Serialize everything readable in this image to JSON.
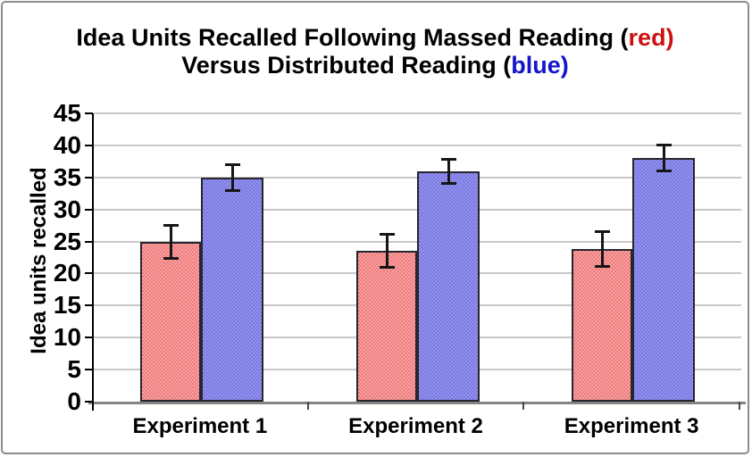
{
  "title": {
    "line1_text": "Idea Units Recalled Following Massed Reading (",
    "line1_colored": "red)",
    "line2_text": "Versus Distributed Reading (",
    "line2_colored": "blue)"
  },
  "axes": {
    "y_label": "Idea units recalled",
    "y_ticks": [
      "0",
      "5",
      "10",
      "15",
      "20",
      "25",
      "30",
      "35",
      "40",
      "45"
    ],
    "x_labels": [
      "Experiment 1",
      "Experiment 2",
      "Experiment 3"
    ]
  },
  "chart_data": {
    "type": "bar",
    "title": "Idea Units Recalled Following Massed Reading (red) Versus Distributed Reading (blue)",
    "categories": [
      "Experiment 1",
      "Experiment 2",
      "Experiment 3"
    ],
    "series": [
      {
        "name": "Massed Reading",
        "color": "#f28a8a",
        "color_alt": "#ed7b7b",
        "values": [
          24.9,
          23.6,
          23.8
        ],
        "errors": [
          2.8,
          2.8,
          2.9
        ]
      },
      {
        "name": "Distributed Reading",
        "color": "#8585e8",
        "color_alt": "#7878e0",
        "values": [
          35.0,
          35.9,
          38.0
        ],
        "errors": [
          2.2,
          2.1,
          2.2
        ]
      }
    ],
    "xlabel": "",
    "ylabel": "Idea units recalled",
    "ylim": [
      0,
      45
    ],
    "ytick_step": 5,
    "grid": true,
    "error_bars": true,
    "legend": "none (series colors named in title)"
  },
  "colors": {
    "title_red": "#cc1111",
    "title_blue": "#1414cc",
    "y_axis_line": "#000000",
    "x_axis_line": "#848484",
    "gridline": "#c9c9c9",
    "frame_border": "#8c8c8c",
    "error_bar": "#161616",
    "bar_border": "#26262e"
  }
}
